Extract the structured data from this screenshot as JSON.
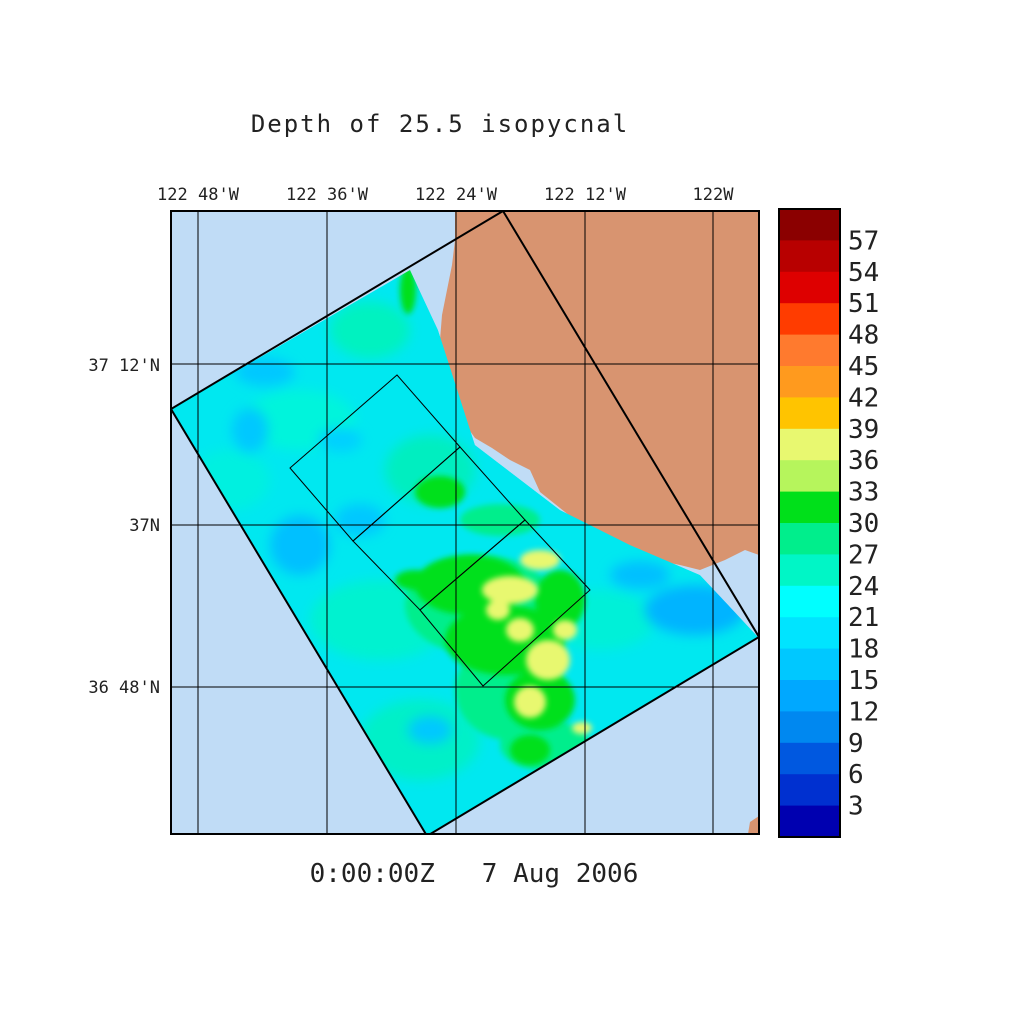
{
  "title": "Depth of 25.5 isopycnal",
  "timestamp": "0:00:00Z   7 Aug 2006",
  "longitude_labels": [
    "122 48'W",
    "122 36'W",
    "122 24'W",
    "122 12'W",
    "122W"
  ],
  "latitude_labels": [
    "37 12'N",
    "37N",
    "36 48'N"
  ],
  "colorbar": {
    "labels": [
      "57",
      "54",
      "51",
      "48",
      "45",
      "42",
      "39",
      "36",
      "33",
      "30",
      "27",
      "24",
      "21",
      "18",
      "15",
      "12",
      "9",
      "6",
      "3"
    ],
    "colors": [
      "#8b0000",
      "#b80000",
      "#de0000",
      "#ff3c00",
      "#ff7a2e",
      "#ff9a1e",
      "#ffc400",
      "#e8f870",
      "#b6f55c",
      "#00e01a",
      "#00ee8c",
      "#00f6c6",
      "#00ffff",
      "#00e4ff",
      "#00c8ff",
      "#00a8ff",
      "#0088f0",
      "#0058e0",
      "#0030d0",
      "#0000b0"
    ]
  },
  "colors": {
    "water": "#c0dcf6",
    "land": "#d89470",
    "domain_base": "#00e8f0"
  }
}
